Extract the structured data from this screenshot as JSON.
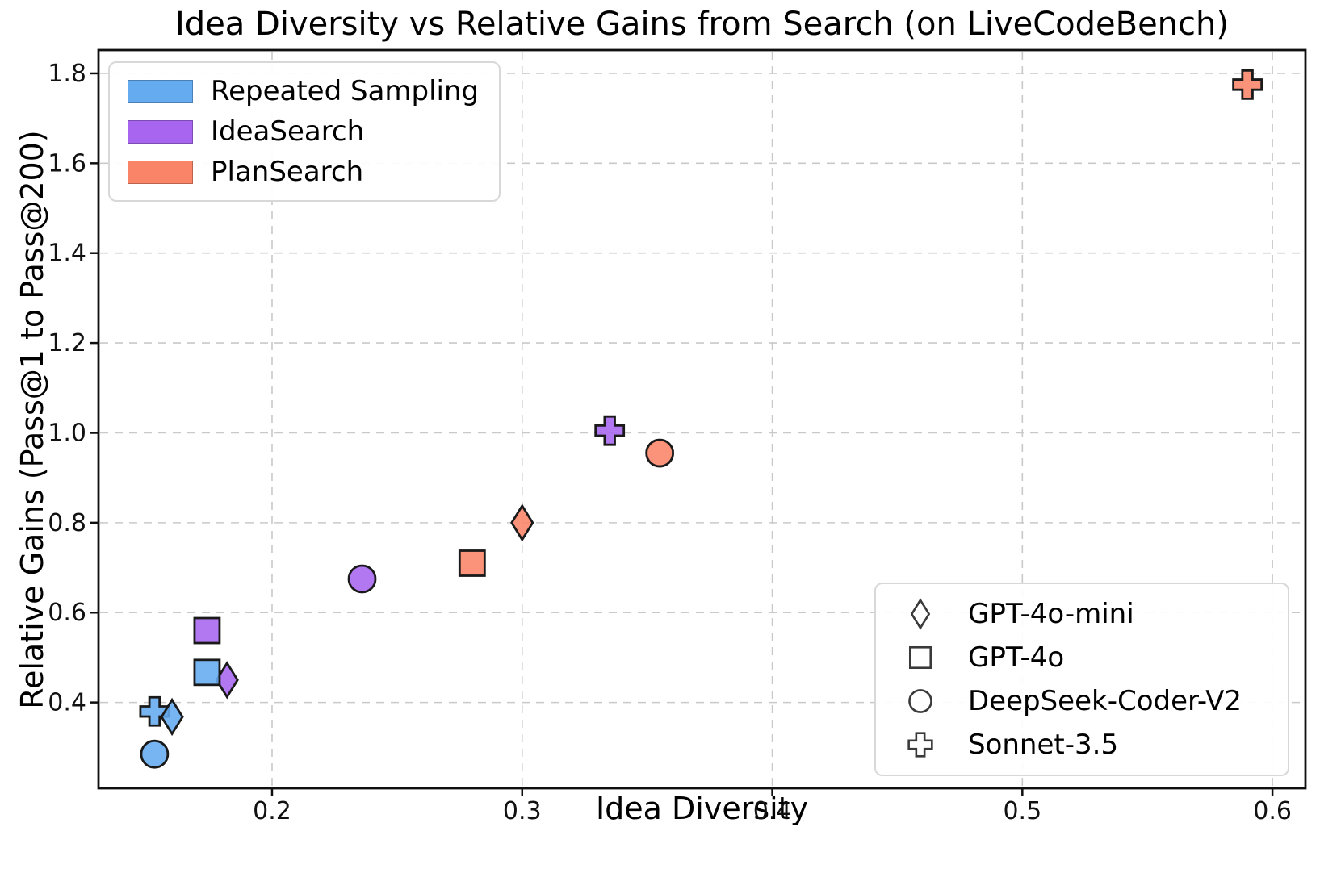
{
  "chart_data": {
    "type": "scatter",
    "title": "Idea Diversity vs Relative Gains from Search (on LiveCodeBench)",
    "xlabel": "Idea Diversity",
    "ylabel": "Relative Gains (Pass@1 to Pass@200)",
    "xlim": [
      0.1306,
      0.6132
    ],
    "ylim": [
      0.209,
      1.852
    ],
    "x_ticks": [
      "0.2",
      "0.3",
      "0.4",
      "0.5",
      "0.6"
    ],
    "x_tick_values": [
      0.2,
      0.3,
      0.4,
      0.5,
      0.6
    ],
    "y_ticks": [
      "0.4",
      "0.6",
      "0.8",
      "1.0",
      "1.2",
      "1.4",
      "1.6",
      "1.8"
    ],
    "y_tick_values": [
      0.4,
      0.6,
      0.8,
      1.0,
      1.2,
      1.4,
      1.6,
      1.8
    ],
    "grid": true,
    "colors": {
      "repeated_sampling": "#64ABF0",
      "ideasearch": "#A765F0",
      "plansearch": "#F98467",
      "marker_edge": "#1a1a1a",
      "grid_line": "#c9c9c9",
      "model_marker_stroke": "#3a3a3a",
      "axis_spine": "#0f0f0f"
    },
    "method_legend": {
      "position": "upper left",
      "entries": [
        {
          "label": "Repeated Sampling",
          "color_key": "repeated_sampling"
        },
        {
          "label": "IdeaSearch",
          "color_key": "ideasearch"
        },
        {
          "label": "PlanSearch",
          "color_key": "plansearch"
        }
      ]
    },
    "model_legend": {
      "position": "lower right",
      "entries": [
        {
          "label": "GPT-4o-mini",
          "marker": "diamond"
        },
        {
          "label": "GPT-4o",
          "marker": "square"
        },
        {
          "label": "DeepSeek-Coder-V2",
          "marker": "circle"
        },
        {
          "label": "Sonnet-3.5",
          "marker": "plus"
        }
      ]
    },
    "points": [
      {
        "method": "IdeaSearch",
        "color_key": "ideasearch",
        "model": "GPT-4o-mini",
        "marker": "diamond",
        "x": 0.182,
        "y": 0.45
      },
      {
        "method": "IdeaSearch",
        "color_key": "ideasearch",
        "model": "GPT-4o",
        "marker": "square",
        "x": 0.174,
        "y": 0.56
      },
      {
        "method": "IdeaSearch",
        "color_key": "ideasearch",
        "model": "DeepSeek-Coder-V2",
        "marker": "circle",
        "x": 0.236,
        "y": 0.675
      },
      {
        "method": "IdeaSearch",
        "color_key": "ideasearch",
        "model": "Sonnet-3.5",
        "marker": "plus",
        "x": 0.335,
        "y": 1.005
      },
      {
        "method": "PlanSearch",
        "color_key": "plansearch",
        "model": "GPT-4o",
        "marker": "square",
        "x": 0.28,
        "y": 0.71
      },
      {
        "method": "PlanSearch",
        "color_key": "plansearch",
        "model": "GPT-4o-mini",
        "marker": "diamond",
        "x": 0.3,
        "y": 0.8
      },
      {
        "method": "PlanSearch",
        "color_key": "plansearch",
        "model": "DeepSeek-Coder-V2",
        "marker": "circle",
        "x": 0.355,
        "y": 0.955
      },
      {
        "method": "PlanSearch",
        "color_key": "plansearch",
        "model": "Sonnet-3.5",
        "marker": "plus",
        "x": 0.59,
        "y": 1.775
      },
      {
        "method": "Repeated Sampling",
        "color_key": "repeated_sampling",
        "model": "Sonnet-3.5",
        "marker": "plus",
        "x": 0.153,
        "y": 0.38
      },
      {
        "method": "Repeated Sampling",
        "color_key": "repeated_sampling",
        "model": "GPT-4o-mini",
        "marker": "diamond",
        "x": 0.16,
        "y": 0.368
      },
      {
        "method": "Repeated Sampling",
        "color_key": "repeated_sampling",
        "model": "GPT-4o",
        "marker": "square",
        "x": 0.174,
        "y": 0.467
      },
      {
        "method": "Repeated Sampling",
        "color_key": "repeated_sampling",
        "model": "DeepSeek-Coder-V2",
        "marker": "circle",
        "x": 0.153,
        "y": 0.285
      }
    ]
  }
}
